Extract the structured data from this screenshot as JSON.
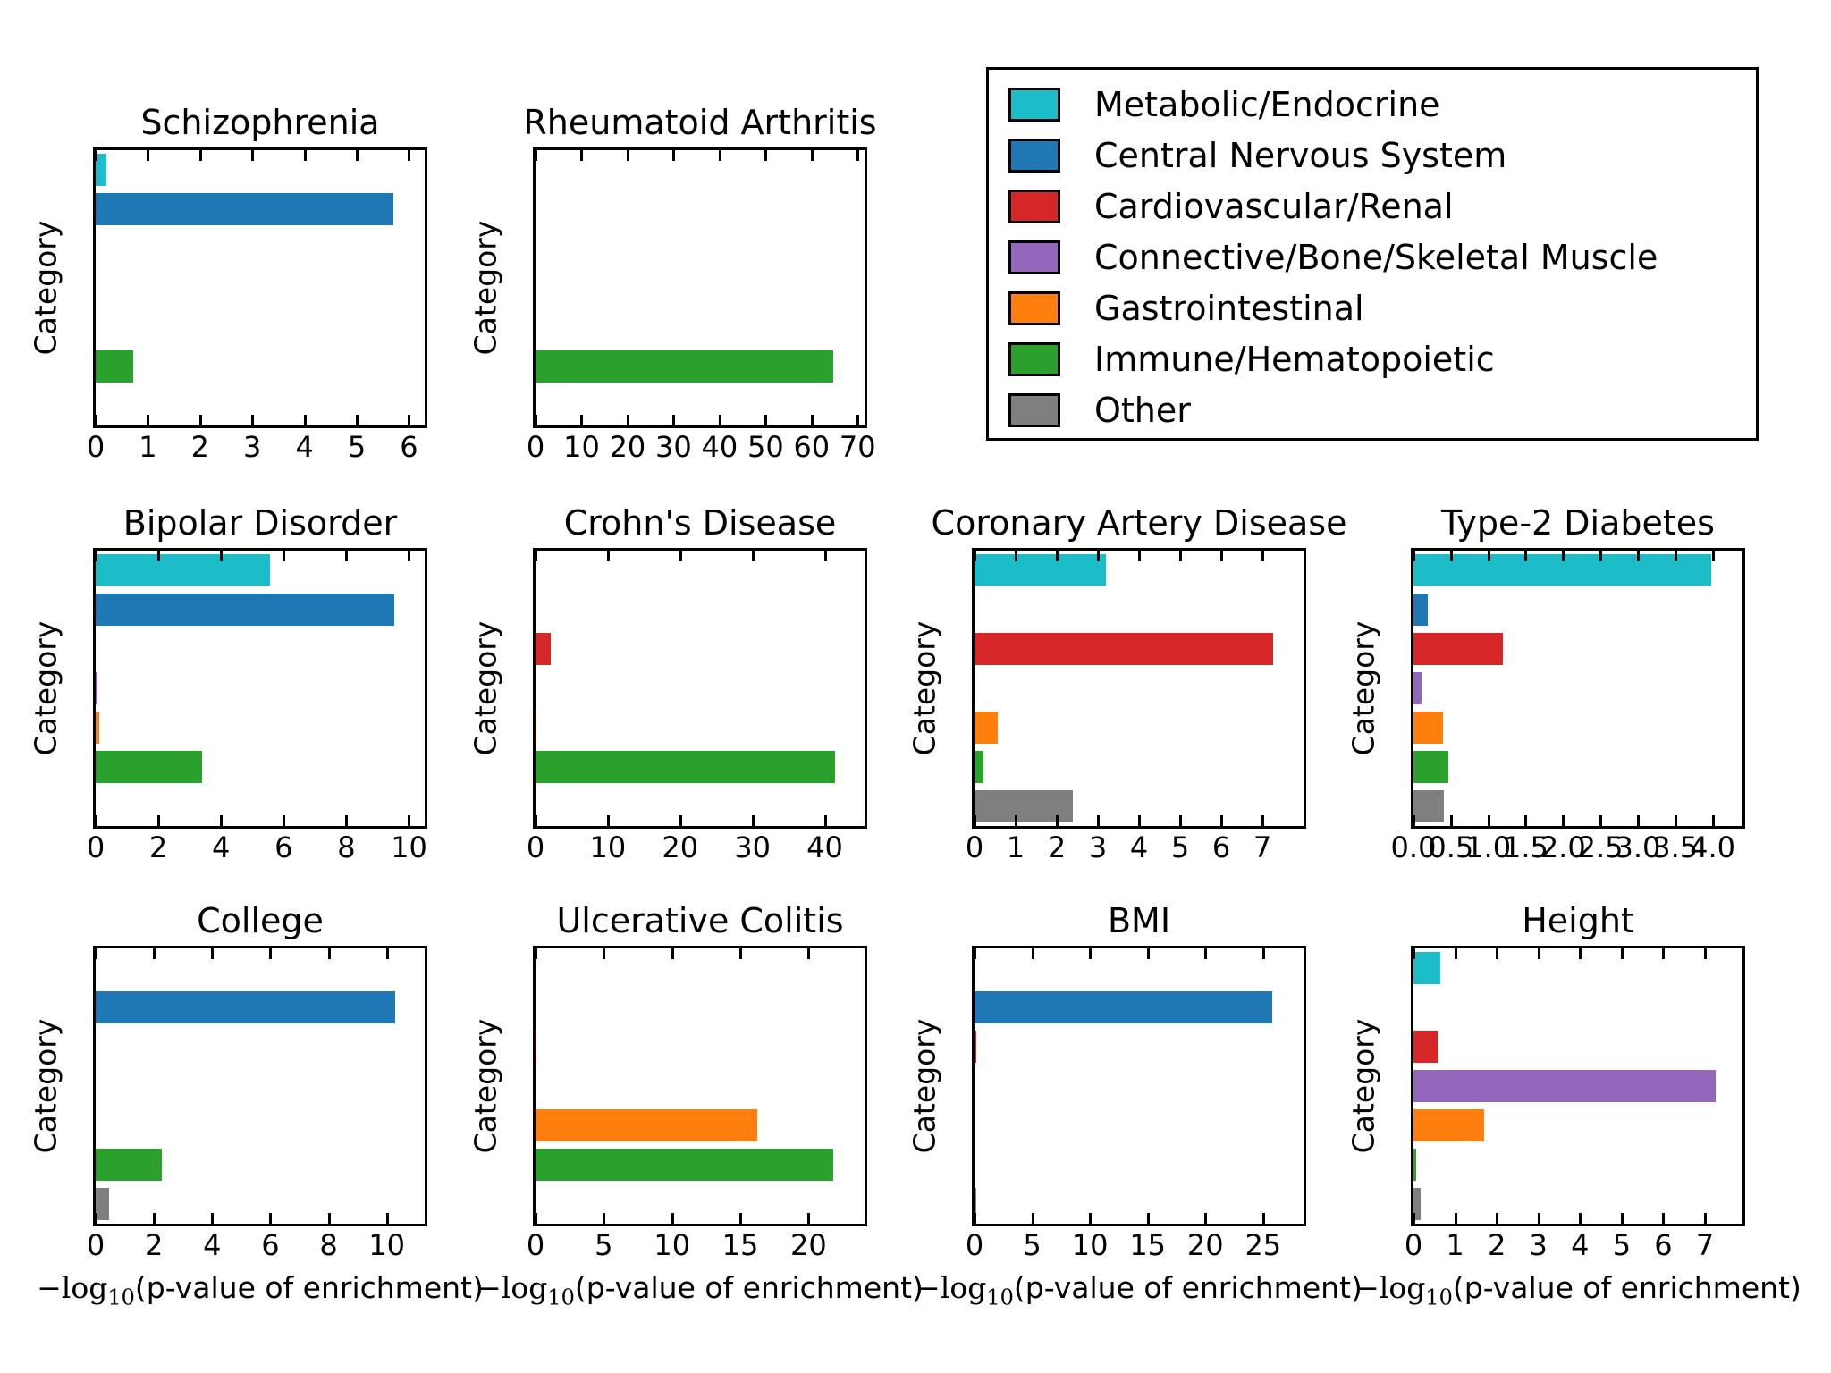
{
  "ylabel": "Category",
  "xlabel": {
    "prefix": "−log",
    "sub": "10",
    "suffix": "(p-value of enrichment)"
  },
  "categories": [
    "Metabolic/Endocrine",
    "Central Nervous System",
    "Cardiovascular/Renal",
    "Connective/Bone/Skeletal Muscle",
    "Gastrointestinal",
    "Immune/Hematopoietic",
    "Other"
  ],
  "legend": {
    "entries": [
      {
        "label": "Metabolic/Endocrine",
        "color": "#1cbcc9"
      },
      {
        "label": "Central Nervous System",
        "color": "#1f77b4"
      },
      {
        "label": "Cardiovascular/Renal",
        "color": "#d62728"
      },
      {
        "label": "Connective/Bone/Skeletal Muscle",
        "color": "#9467bd"
      },
      {
        "label": "Gastrointestinal",
        "color": "#ff7f0e"
      },
      {
        "label": "Immune/Hematopoietic",
        "color": "#2ca02c"
      },
      {
        "label": "Other",
        "color": "#7f7f7f"
      }
    ]
  },
  "chart_data": [
    {
      "type": "bar",
      "orientation": "horizontal",
      "title": "Schizophrenia",
      "row": 0,
      "col": 0,
      "xlim": [
        0,
        6.3
      ],
      "xticks": [
        0,
        1,
        2,
        3,
        4,
        5,
        6
      ],
      "xtick_labels": [
        "0",
        "1",
        "2",
        "3",
        "4",
        "5",
        "6"
      ],
      "values": [
        0.2,
        5.7,
        0,
        0,
        0,
        0.72,
        0
      ],
      "show_xlabel": false
    },
    {
      "type": "bar",
      "orientation": "horizontal",
      "title": "Rheumatoid Arthritis",
      "row": 0,
      "col": 1,
      "xlim": [
        0,
        71.5
      ],
      "xticks": [
        0,
        10,
        20,
        30,
        40,
        50,
        60,
        70
      ],
      "xtick_labels": [
        "0",
        "10",
        "20",
        "30",
        "40",
        "50",
        "60",
        "70"
      ],
      "values": [
        0,
        0,
        0,
        0,
        0,
        64.7,
        0
      ],
      "show_xlabel": false
    },
    {
      "type": "bar",
      "orientation": "horizontal",
      "title": "Bipolar Disorder",
      "row": 1,
      "col": 0,
      "xlim": [
        0,
        10.5
      ],
      "xticks": [
        0,
        2,
        4,
        6,
        8,
        10
      ],
      "xtick_labels": [
        "0",
        "2",
        "4",
        "6",
        "8",
        "10"
      ],
      "values": [
        5.57,
        9.54,
        0,
        0.07,
        0.1,
        3.4,
        0
      ],
      "show_xlabel": false
    },
    {
      "type": "bar",
      "orientation": "horizontal",
      "title": "Crohn's Disease",
      "row": 1,
      "col": 1,
      "xlim": [
        0,
        45.5
      ],
      "xticks": [
        0,
        10,
        20,
        30,
        40
      ],
      "xtick_labels": [
        "0",
        "10",
        "20",
        "30",
        "40"
      ],
      "values": [
        0,
        0,
        2.1,
        0,
        0.15,
        41.4,
        0
      ],
      "show_xlabel": false
    },
    {
      "type": "bar",
      "orientation": "horizontal",
      "title": "Coronary Artery Disease",
      "row": 1,
      "col": 2,
      "xlim": [
        0,
        8.0
      ],
      "xticks": [
        0,
        1,
        2,
        3,
        4,
        5,
        6,
        7
      ],
      "xtick_labels": [
        "0",
        "1",
        "2",
        "3",
        "4",
        "5",
        "6",
        "7"
      ],
      "values": [
        3.2,
        0,
        7.25,
        0,
        0.57,
        0.22,
        2.4
      ],
      "show_xlabel": false
    },
    {
      "type": "bar",
      "orientation": "horizontal",
      "title": "Type-2 Diabetes",
      "row": 1,
      "col": 3,
      "xlim": [
        0,
        4.4
      ],
      "xticks": [
        0,
        0.5,
        1.0,
        1.5,
        2.0,
        2.5,
        3.0,
        3.5,
        4.0
      ],
      "xtick_labels": [
        "0.0",
        "0.5",
        "1.0",
        "1.5",
        "2.0",
        "2.5",
        "3.0",
        "3.5",
        "4.0"
      ],
      "values": [
        3.98,
        0.19,
        1.2,
        0.11,
        0.39,
        0.47,
        0.41
      ],
      "show_xlabel": false
    },
    {
      "type": "bar",
      "orientation": "horizontal",
      "title": "College",
      "row": 2,
      "col": 0,
      "xlim": [
        0,
        11.3
      ],
      "xticks": [
        0,
        2,
        4,
        6,
        8,
        10
      ],
      "xtick_labels": [
        "0",
        "2",
        "4",
        "6",
        "8",
        "10"
      ],
      "values": [
        0,
        10.3,
        0,
        0,
        0,
        2.28,
        0.45
      ],
      "show_xlabel": true
    },
    {
      "type": "bar",
      "orientation": "horizontal",
      "title": "Ulcerative Colitis",
      "row": 2,
      "col": 1,
      "xlim": [
        0,
        24.1
      ],
      "xticks": [
        0,
        5,
        10,
        15,
        20
      ],
      "xtick_labels": [
        "0",
        "5",
        "10",
        "15",
        "20"
      ],
      "values": [
        0,
        0,
        0.08,
        0,
        16.25,
        21.8,
        0
      ],
      "show_xlabel": true
    },
    {
      "type": "bar",
      "orientation": "horizontal",
      "title": "BMI",
      "row": 2,
      "col": 2,
      "xlim": [
        0,
        28.5
      ],
      "xticks": [
        0,
        5,
        10,
        15,
        20,
        25
      ],
      "xtick_labels": [
        "0",
        "5",
        "10",
        "15",
        "20",
        "25"
      ],
      "values": [
        0,
        25.8,
        0.15,
        0,
        0,
        0,
        0.12
      ],
      "show_xlabel": true
    },
    {
      "type": "bar",
      "orientation": "horizontal",
      "title": "Height",
      "row": 2,
      "col": 3,
      "xlim": [
        0,
        7.9
      ],
      "xticks": [
        0,
        1,
        2,
        3,
        4,
        5,
        6,
        7
      ],
      "xtick_labels": [
        "0",
        "1",
        "2",
        "3",
        "4",
        "5",
        "6",
        "7"
      ],
      "values": [
        0.65,
        0,
        0.58,
        7.25,
        1.7,
        0.07,
        0.18
      ],
      "show_xlabel": true
    }
  ]
}
